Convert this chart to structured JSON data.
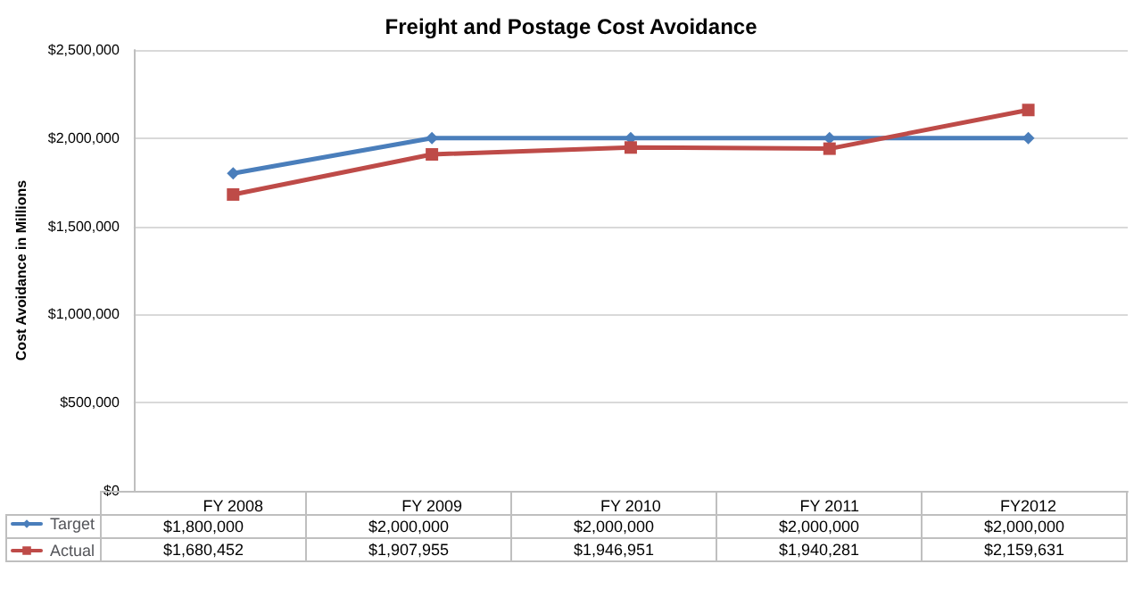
{
  "chart_data": {
    "type": "line",
    "title": "Freight and Postage Cost Avoidance",
    "ylabel": "Cost Avoidance in Millions",
    "categories": [
      "FY 2008",
      "FY 2009",
      "FY 2010",
      "FY 2011",
      "FY2012"
    ],
    "series": [
      {
        "name": "Target",
        "color": "#4a7ebb",
        "marker": "diamond",
        "values": [
          1800000,
          2000000,
          2000000,
          2000000,
          2000000
        ]
      },
      {
        "name": "Actual",
        "color": "#be4b48",
        "marker": "square",
        "values": [
          1680452,
          1907955,
          1946951,
          1940281,
          2159631
        ]
      }
    ],
    "value_labels": [
      [
        "$1,800,000",
        "$2,000,000",
        "$2,000,000",
        "$2,000,000",
        "$2,000,000"
      ],
      [
        "$1,680,452",
        "$1,907,955",
        "$1,946,951",
        "$1,940,281",
        "$2,159,631"
      ]
    ],
    "ylim": [
      0,
      2500000
    ],
    "yticks": [
      {
        "value": 0,
        "label": "$0"
      },
      {
        "value": 500000,
        "label": "$500,000"
      },
      {
        "value": 1000000,
        "label": "$1,000,000"
      },
      {
        "value": 1500000,
        "label": "$1,500,000"
      },
      {
        "value": 2000000,
        "label": "$2,000,000"
      },
      {
        "value": 2500000,
        "label": "$2,500,000"
      }
    ],
    "grid": "y",
    "legend": "bottom left",
    "line_style": "solid"
  }
}
